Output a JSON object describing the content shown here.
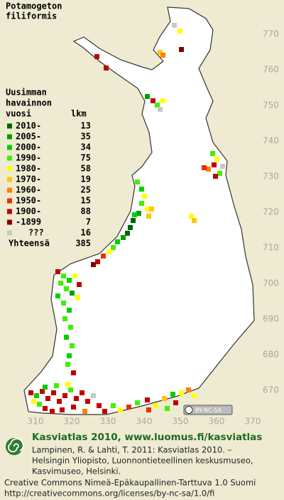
{
  "title_lines": [
    "Potamogeton",
    "filiformis"
  ],
  "legend": {
    "heading_lines": [
      "Uusimman",
      "havainnon",
      "vuosi"
    ],
    "count_header": "lkm",
    "rows": [
      {
        "label": "2010-",
        "count": 13,
        "color": "#006400"
      },
      {
        "label": "2005-",
        "count": 35,
        "color": "#00a000"
      },
      {
        "label": "2000-",
        "count": 34,
        "color": "#00d000"
      },
      {
        "label": "1990-",
        "count": 75,
        "color": "#44ee00"
      },
      {
        "label": "1980-",
        "count": 58,
        "color": "#ffff00"
      },
      {
        "label": "1970-",
        "count": 19,
        "color": "#ffc800"
      },
      {
        "label": "1960-",
        "count": 25,
        "color": "#ff8000"
      },
      {
        "label": "1950-",
        "count": 15,
        "color": "#e83000"
      },
      {
        "label": "1900-",
        "count": 88,
        "color": "#c00000"
      },
      {
        "label": "-1899",
        "count": 7,
        "color": "#800000"
      },
      {
        "label": "???",
        "count": 16,
        "color": "#c8c8c8"
      }
    ],
    "total": {
      "label": "Yhteensä",
      "count": 385
    }
  },
  "grid": {
    "north": [
      770,
      760,
      750,
      740,
      730,
      720,
      710,
      700,
      690,
      680,
      670
    ],
    "east": [
      310,
      320,
      330,
      340,
      350,
      360,
      370
    ]
  },
  "badge": "BY-NC-SA",
  "footer": {
    "heading": "Kasviatlas 2010, www.luomus.fi/kasviatlas",
    "citation_lines": [
      "Lampinen, R. & Lahti, T. 2011: Kasviatlas 2010. –",
      "Helsingin Yliopisto, Luonnontieteellinen keskusmuseo,",
      "Kasvimuseo, Helsinki."
    ],
    "license_lines": [
      "Creative Commons Nimeä-Epäkaupallinen-Tarttuva 1.0 Suomi",
      "http://creativecommons.org/licenses/by-nc-sa/1.0/fi"
    ]
  }
}
